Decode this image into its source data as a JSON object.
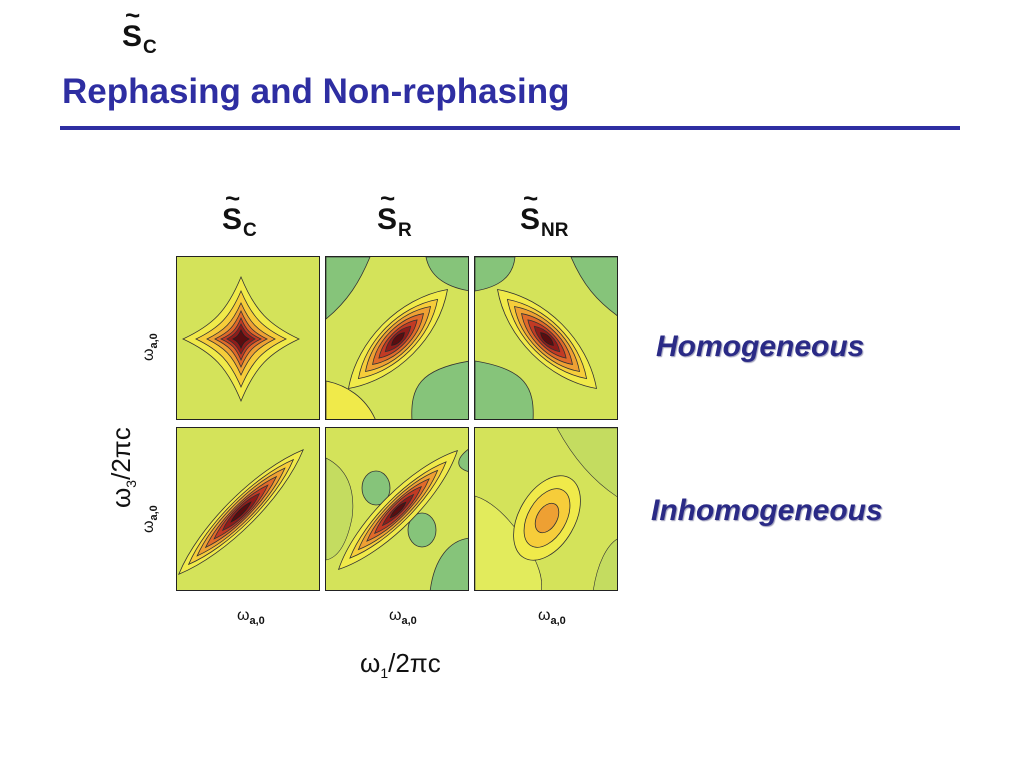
{
  "slide": {
    "title": "Rephasing and Non-rephasing"
  },
  "figure": {
    "columns": [
      {
        "symbol": "S",
        "tilde": "~",
        "subscript": "C"
      },
      {
        "symbol": "S",
        "tilde": "~",
        "subscript": "R"
      },
      {
        "symbol": "S",
        "tilde": "~",
        "subscript": "NR"
      }
    ],
    "rows": [
      {
        "label": "Homogeneous"
      },
      {
        "label": "Inhomogeneous"
      }
    ],
    "x_axis": {
      "symbol": "ω",
      "subscript": "1",
      "suffix": "/2πc",
      "tick_symbol": "ω",
      "tick_subscript": "a,0"
    },
    "y_axis": {
      "symbol": "ω",
      "subscript": "3",
      "suffix": "/2πc",
      "tick_symbol": "ω",
      "tick_subscript": "a,0"
    },
    "colors": {
      "positive_peak": "#5a0d10",
      "mid": "#e3901e",
      "background": "#d4e35a",
      "negative": "#86c47a",
      "title": "#2e2ea2"
    }
  }
}
